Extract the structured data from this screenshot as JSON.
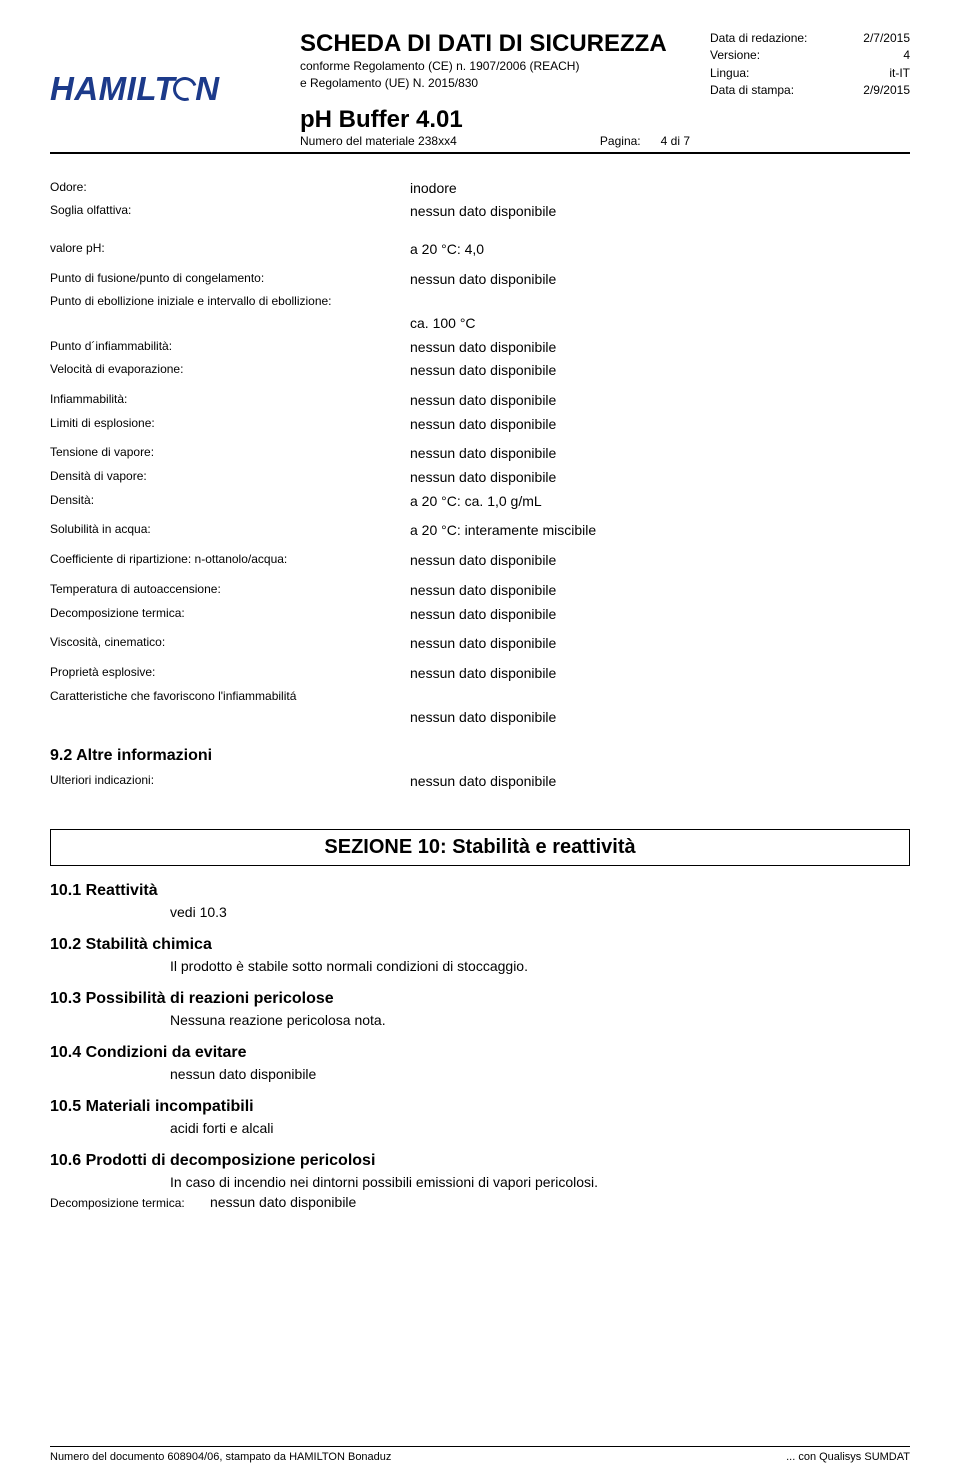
{
  "header": {
    "logo_text_a": "HAMILT",
    "logo_text_b": "N",
    "doc_title": "SCHEDA DI DATI DI SICUREZZA",
    "subtitle1": "conforme Regolamento (CE) n. 1907/2006 (REACH)",
    "subtitle2": "e Regolamento (UE) N. 2015/830",
    "product_name": "pH Buffer 4.01",
    "material_label": "Numero del materiale 238xx4",
    "page_label": "Pagina:",
    "page_value": "4 di 7"
  },
  "meta": {
    "rows": [
      {
        "label": "Data di redazione:",
        "value": "2/7/2015"
      },
      {
        "label": "Versione:",
        "value": "4"
      },
      {
        "label": "Lingua:",
        "value": "it-IT"
      },
      {
        "label": "Data di stampa:",
        "value": "2/9/2015"
      }
    ]
  },
  "props": {
    "odore_label": "Odore:",
    "odore_value": "inodore",
    "soglia_label": "Soglia olfattiva:",
    "soglia_value": "nessun dato disponibile",
    "ph_label": "valore pH:",
    "ph_value": "a 20 °C: 4,0",
    "fusione_label": "Punto di fusione/punto di congelamento:",
    "fusione_value": "nessun dato disponibile",
    "ebollizione_head": "Punto di ebollizione iniziale e intervallo di ebollizione:",
    "ebollizione_value": "ca. 100 °C",
    "infiamm_label": "Punto d´infiammabilità:",
    "infiamm_value": "nessun dato disponibile",
    "evap_label": "Velocità di evaporazione:",
    "evap_value": "nessun dato disponibile",
    "infiamm2_label": "Infiammabilità:",
    "infiamm2_value": "nessun dato disponibile",
    "esplos_label": "Limiti di esplosione:",
    "esplos_value": "nessun dato disponibile",
    "tensione_label": "Tensione di vapore:",
    "tensione_value": "nessun dato disponibile",
    "densvap_label": "Densità di vapore:",
    "densvap_value": "nessun dato disponibile",
    "densita_label": "Densità:",
    "densita_value": "a 20 °C: ca. 1,0 g/mL",
    "solub_label": "Solubilità in acqua:",
    "solub_value": "a 20 °C: interamente miscibile",
    "coeff_label": "Coefficiente di ripartizione: n-ottanolo/acqua:",
    "coeff_value": "nessun dato disponibile",
    "autoacc_label": "Temperatura di autoaccensione:",
    "autoacc_value": "nessun dato disponibile",
    "decomp_label": "Decomposizione termica:",
    "decomp_value": "nessun dato disponibile",
    "visc_label": "Viscosità, cinematico:",
    "visc_value": "nessun dato disponibile",
    "propespl_label": "Proprietà esplosive:",
    "propespl_value": "nessun dato disponibile",
    "carat_head": "Caratteristiche che favoriscono l'infiammabilitá",
    "carat_value": "nessun dato disponibile"
  },
  "section92": {
    "title": "9.2 Altre informazioni",
    "row_label": "Ulteriori indicazioni:",
    "row_value": "nessun dato disponibile"
  },
  "section10": {
    "box_title": "SEZIONE 10: Stabilità e reattività",
    "s101": "10.1 Reattività",
    "s101_text": "vedi 10.3",
    "s102": "10.2 Stabilità chimica",
    "s102_text": "Il prodotto è stabile sotto normali condizioni di stoccaggio.",
    "s103": "10.3 Possibilità di reazioni pericolose",
    "s103_text": "Nessuna reazione pericolosa nota.",
    "s104": "10.4 Condizioni da evitare",
    "s104_text": "nessun dato disponibile",
    "s105": "10.5 Materiali incompatibili",
    "s105_text": "acidi forti e alcali",
    "s106": "10.6 Prodotti di decomposizione pericolosi",
    "s106_text": "In caso di incendio nei dintorni possibili emissioni di vapori pericolosi.",
    "s106_label": "Decomposizione termica:",
    "s106_value": "nessun dato disponibile"
  },
  "footer": {
    "left": "Numero del documento 608904/06, stampato da HAMILTON Bonaduz",
    "right": "... con Qualisys SUMDAT"
  }
}
